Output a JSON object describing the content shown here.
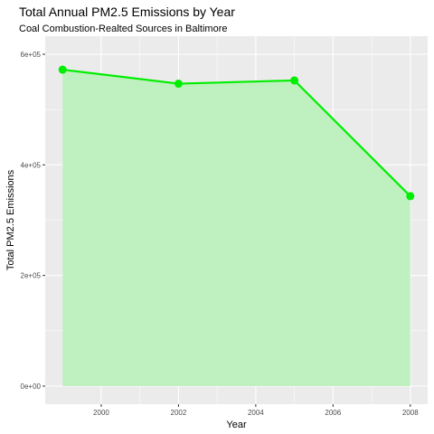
{
  "chart_data": {
    "type": "area",
    "title": "Total Annual PM2.5 Emissions by Year",
    "subtitle": "Coal Combustion-Realted Sources in Baltimore",
    "xlabel": "Year",
    "ylabel": "Total PM2.5 Emissions",
    "x": [
      1999,
      2002,
      2005,
      2008
    ],
    "values": [
      572126,
      546789,
      552675,
      343432
    ],
    "xlim": [
      1998.55,
      2008.45
    ],
    "ylim": [
      0,
      600000
    ],
    "x_ticks": [
      2000,
      2002,
      2004,
      2006,
      2008
    ],
    "x_tick_labels": [
      "2000",
      "2002",
      "2004",
      "2006",
      "2008"
    ],
    "y_ticks": [
      0,
      200000,
      400000,
      600000
    ],
    "y_tick_labels": [
      "0e+00",
      "2e+05",
      "4e+05",
      "6e+05"
    ],
    "grid": true,
    "legend": "none",
    "colors": {
      "panel": "#ebebeb",
      "grid": "#ffffff",
      "line": "#00ee00",
      "area": "#bff0bf",
      "tick_text": "#4d4d4d",
      "tick_mark": "#333333"
    }
  }
}
